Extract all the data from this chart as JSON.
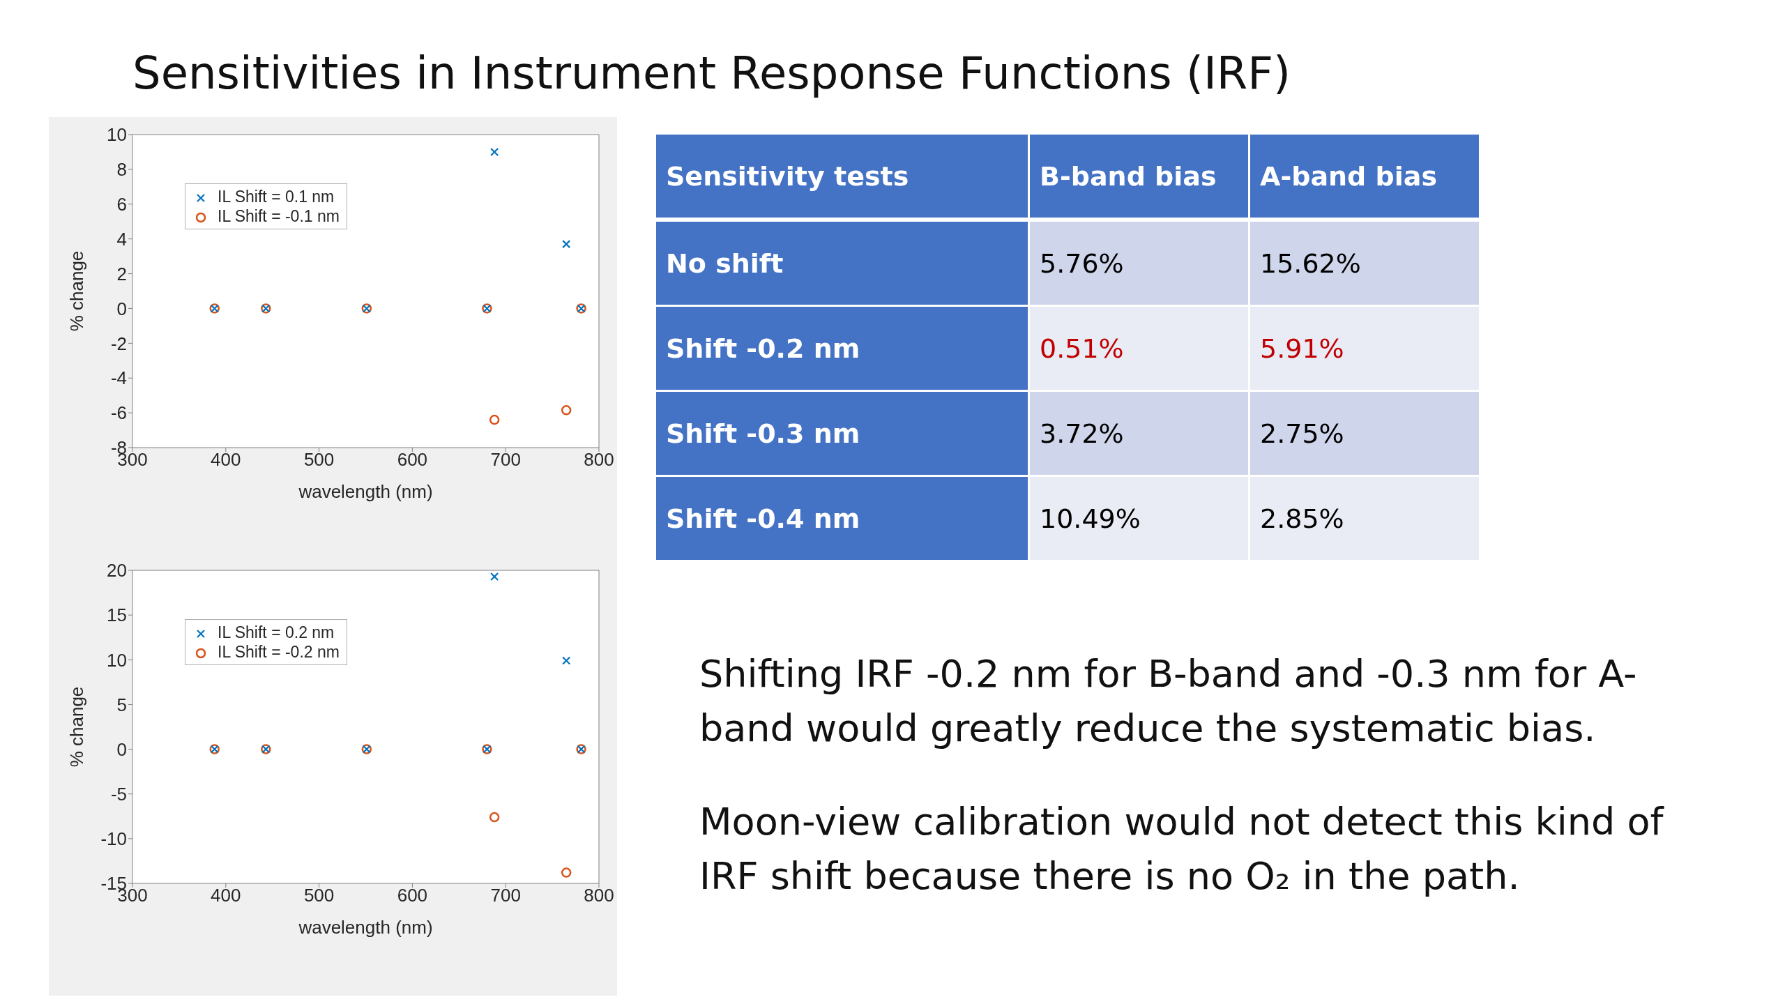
{
  "chart_data": [
    {
      "type": "scatter",
      "title": "Sensitivities in Instrument Response Functions (IRF)",
      "xlabel": "wavelength (nm)",
      "ylabel": "% change",
      "xlim": [
        300,
        800
      ],
      "xticks": [
        300,
        400,
        500,
        600,
        700,
        800
      ],
      "ylim": [
        -8,
        10
      ],
      "yticks": [
        -8,
        -6,
        -4,
        -2,
        0,
        2,
        4,
        6,
        8,
        10
      ],
      "legend": "top left",
      "series": [
        {
          "name": "IL Shift = 0.1 nm",
          "color": "#0072bd",
          "marker": "cross",
          "x": [
            388,
            443,
            551,
            680,
            688,
            765,
            781
          ],
          "values": [
            0,
            0,
            0,
            0,
            9,
            3.7,
            0
          ]
        },
        {
          "name": "IL Shift = -0.1 nm",
          "color": "#d95319",
          "marker": "circle",
          "x": [
            388,
            443,
            551,
            680,
            688,
            765,
            781
          ],
          "values": [
            0,
            0,
            0,
            0,
            -6.4,
            -5.85,
            0
          ]
        }
      ]
    },
    {
      "type": "scatter",
      "xlabel": "wavelength (nm)",
      "ylabel": "% change",
      "xlim": [
        300,
        800
      ],
      "xticks": [
        300,
        400,
        500,
        600,
        700,
        800
      ],
      "ylim": [
        -15,
        20
      ],
      "yticks": [
        -15,
        -10,
        -5,
        0,
        5,
        10,
        15,
        20
      ],
      "legend": "top left",
      "series": [
        {
          "name": "IL Shift = 0.2 nm",
          "color": "#0072bd",
          "marker": "cross",
          "x": [
            388,
            443,
            551,
            680,
            688,
            765,
            781
          ],
          "values": [
            0,
            0,
            0,
            0,
            19.3,
            9.9,
            0
          ]
        },
        {
          "name": "IL Shift = -0.2 nm",
          "color": "#d95319",
          "marker": "circle",
          "x": [
            388,
            443,
            551,
            680,
            688,
            765,
            781
          ],
          "values": [
            0,
            0,
            0,
            0,
            -7.6,
            -13.8,
            0
          ]
        }
      ]
    },
    {
      "type": "other",
      "categories": [
        "Sensitivity tests",
        "B-band bias",
        "A-band bias"
      ],
      "y_categories": [
        "No shift",
        "Shift -0.2 nm",
        "Shift -0.3 nm",
        "Shift -0.4 nm"
      ],
      "cell_labels": [
        [
          "5.76%",
          "15.62%"
        ],
        [
          "0.51%",
          "5.91%"
        ],
        [
          "3.72%",
          "2.75%"
        ],
        [
          "10.49%",
          "2.85%"
        ]
      ],
      "colors": [
        [
          "#000000",
          "#000000"
        ],
        [
          "#c00000",
          "#c00000"
        ],
        [
          "#000000",
          "#000000"
        ],
        [
          "#000000",
          "#000000"
        ]
      ],
      "annotations": [
        "Shifting IRF -0.2 nm for B-band and -0.3 nm for A-band would greatly reduce the systematic bias.",
        "Moon-view calibration would not detect this kind of IRF shift because there is no O₂ in the path."
      ]
    }
  ]
}
